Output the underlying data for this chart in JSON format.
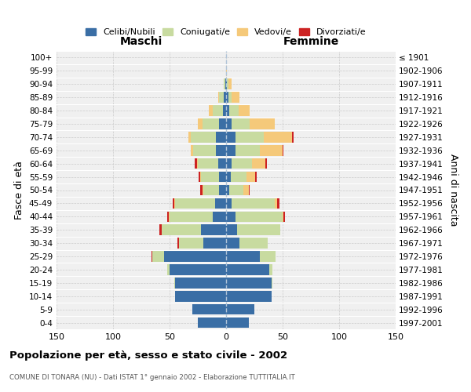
{
  "age_groups": [
    "0-4",
    "5-9",
    "10-14",
    "15-19",
    "20-24",
    "25-29",
    "30-34",
    "35-39",
    "40-44",
    "45-49",
    "50-54",
    "55-59",
    "60-64",
    "65-69",
    "70-74",
    "75-79",
    "80-84",
    "85-89",
    "90-94",
    "95-99",
    "100+"
  ],
  "birth_years": [
    "1997-2001",
    "1992-1996",
    "1987-1991",
    "1982-1986",
    "1977-1981",
    "1972-1976",
    "1967-1971",
    "1962-1966",
    "1957-1961",
    "1952-1956",
    "1947-1951",
    "1942-1946",
    "1937-1941",
    "1932-1936",
    "1927-1931",
    "1922-1926",
    "1917-1921",
    "1912-1916",
    "1907-1911",
    "1902-1906",
    "≤ 1901"
  ],
  "maschi": {
    "celibi": [
      25,
      30,
      45,
      45,
      50,
      55,
      20,
      22,
      12,
      10,
      6,
      6,
      7,
      9,
      9,
      6,
      3,
      2,
      1,
      0,
      0
    ],
    "coniugati": [
      0,
      0,
      0,
      1,
      2,
      10,
      22,
      35,
      38,
      35,
      14,
      16,
      18,
      20,
      22,
      15,
      9,
      4,
      1,
      0,
      0
    ],
    "vedovi": [
      0,
      0,
      0,
      0,
      0,
      0,
      0,
      0,
      1,
      1,
      1,
      1,
      1,
      2,
      2,
      4,
      3,
      1,
      0,
      0,
      0
    ],
    "divorziati": [
      0,
      0,
      0,
      0,
      0,
      1,
      1,
      2,
      1,
      1,
      2,
      1,
      2,
      0,
      0,
      0,
      0,
      0,
      0,
      0,
      0
    ]
  },
  "femmine": {
    "nubili": [
      20,
      25,
      40,
      40,
      38,
      30,
      12,
      10,
      8,
      5,
      3,
      4,
      5,
      8,
      8,
      5,
      3,
      2,
      1,
      0,
      0
    ],
    "coniugate": [
      0,
      0,
      0,
      1,
      3,
      14,
      25,
      38,
      42,
      38,
      12,
      14,
      18,
      22,
      25,
      16,
      8,
      3,
      1,
      0,
      0
    ],
    "vedove": [
      0,
      0,
      0,
      0,
      0,
      0,
      0,
      0,
      1,
      2,
      5,
      8,
      12,
      20,
      25,
      22,
      10,
      7,
      3,
      1,
      0
    ],
    "divorziate": [
      0,
      0,
      0,
      0,
      0,
      0,
      0,
      0,
      1,
      2,
      1,
      1,
      1,
      1,
      2,
      0,
      0,
      0,
      0,
      0,
      0
    ]
  },
  "colors": {
    "celibi": "#3a6ea5",
    "coniugati": "#c8dba0",
    "vedovi": "#f5c97a",
    "divorziati": "#cc2222"
  },
  "title": "Popolazione per età, sesso e stato civile - 2002",
  "subtitle": "COMUNE DI TONARA (NU) - Dati ISTAT 1° gennaio 2002 - Elaborazione TUTTITALIA.IT",
  "label_maschi": "Maschi",
  "label_femmine": "Femmine",
  "ylabel_left": "Fasce di età",
  "ylabel_right": "Anni di nascita",
  "legend_labels": [
    "Celibi/Nubili",
    "Coniugati/e",
    "Vedovi/e",
    "Divorziati/e"
  ],
  "xlim": 150,
  "bg_color": "#ffffff",
  "plot_bg_color": "#f0f0f0"
}
